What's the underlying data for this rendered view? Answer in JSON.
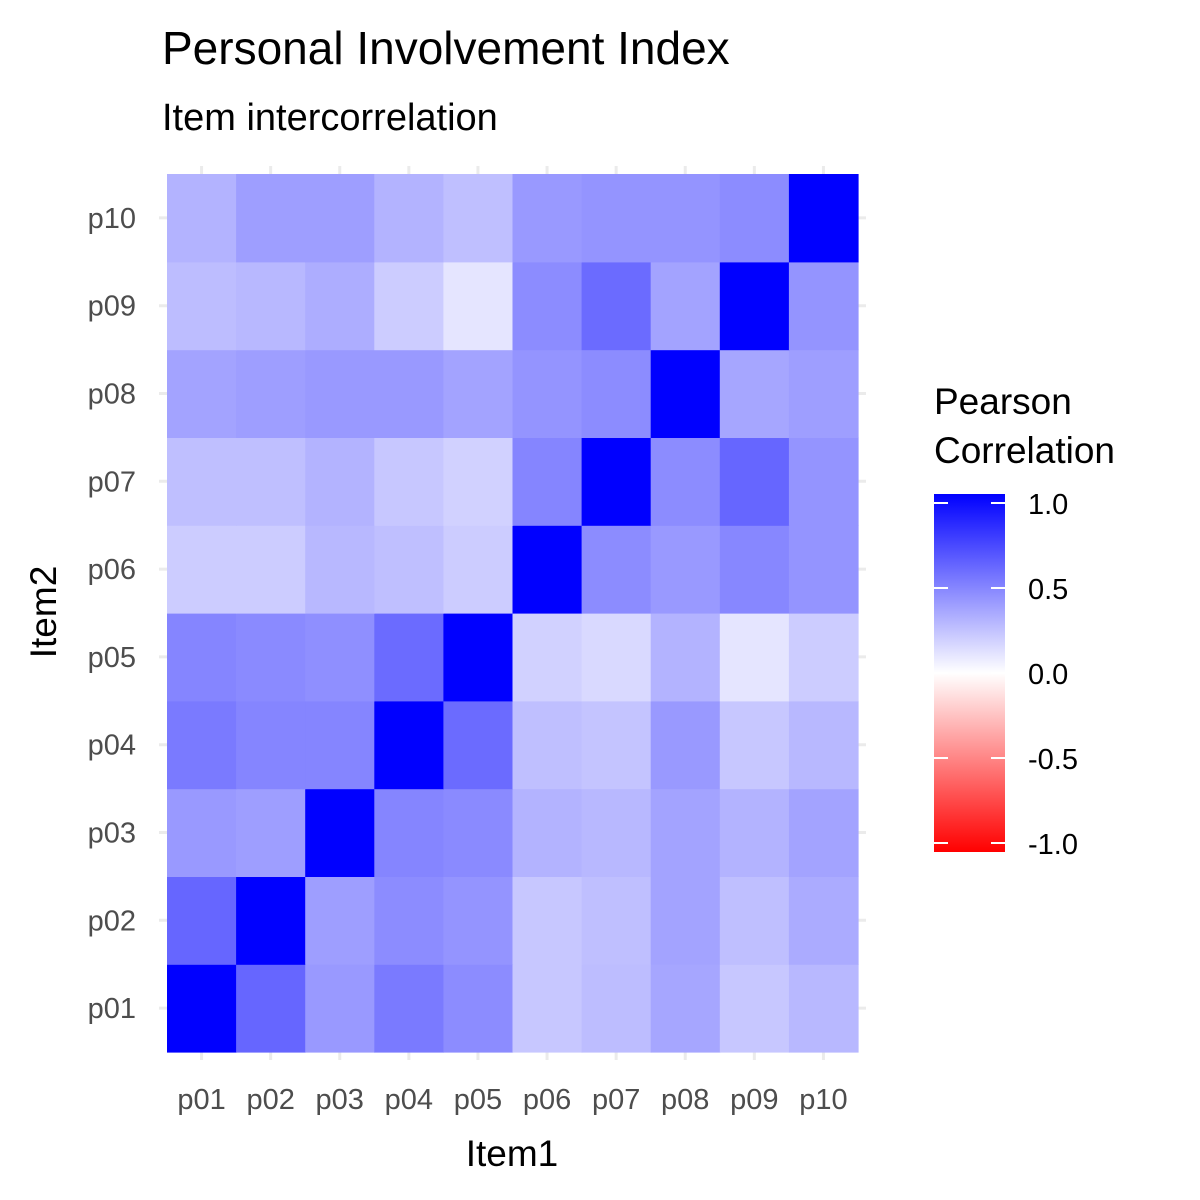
{
  "chart_data": {
    "type": "heatmap",
    "title": "Personal Involvement Index",
    "subtitle": "Item intercorrelation",
    "xlabel": "Item1",
    "ylabel": "Item2",
    "x": [
      "p01",
      "p02",
      "p03",
      "p04",
      "p05",
      "p06",
      "p07",
      "p08",
      "p09",
      "p10"
    ],
    "y": [
      "p01",
      "p02",
      "p03",
      "p04",
      "p05",
      "p06",
      "p07",
      "p08",
      "p09",
      "p10"
    ],
    "values": [
      [
        1.0,
        0.6,
        0.4,
        0.52,
        0.45,
        0.22,
        0.26,
        0.35,
        0.22,
        0.28
      ],
      [
        0.6,
        1.0,
        0.38,
        0.45,
        0.42,
        0.22,
        0.25,
        0.36,
        0.25,
        0.33
      ],
      [
        0.4,
        0.38,
        1.0,
        0.48,
        0.46,
        0.3,
        0.28,
        0.36,
        0.3,
        0.36
      ],
      [
        0.52,
        0.48,
        0.48,
        1.0,
        0.58,
        0.25,
        0.23,
        0.4,
        0.22,
        0.28
      ],
      [
        0.48,
        0.46,
        0.44,
        0.58,
        1.0,
        0.18,
        0.15,
        0.3,
        0.1,
        0.2
      ],
      [
        0.2,
        0.2,
        0.28,
        0.25,
        0.2,
        1.0,
        0.45,
        0.4,
        0.47,
        0.42
      ],
      [
        0.25,
        0.25,
        0.3,
        0.22,
        0.18,
        0.48,
        1.0,
        0.45,
        0.6,
        0.42
      ],
      [
        0.36,
        0.38,
        0.4,
        0.4,
        0.36,
        0.42,
        0.45,
        1.0,
        0.35,
        0.38
      ],
      [
        0.26,
        0.28,
        0.32,
        0.2,
        0.1,
        0.45,
        0.58,
        0.36,
        1.0,
        0.42
      ],
      [
        0.3,
        0.38,
        0.38,
        0.3,
        0.25,
        0.4,
        0.42,
        0.42,
        0.45,
        1.0
      ]
    ],
    "value_range": [
      -1,
      1
    ],
    "grid": true,
    "legend": {
      "title_lines": [
        "Pearson",
        "Correlation"
      ],
      "placement": "right",
      "breaks": [
        1.0,
        0.5,
        0.0,
        -0.5,
        -1.0
      ],
      "labels": [
        "1.0",
        "0.5",
        "0.0",
        "-0.5",
        "-1.0"
      ]
    },
    "colors": {
      "low": "#ff0000",
      "mid": "#ffffff",
      "high": "#0000ff"
    }
  }
}
